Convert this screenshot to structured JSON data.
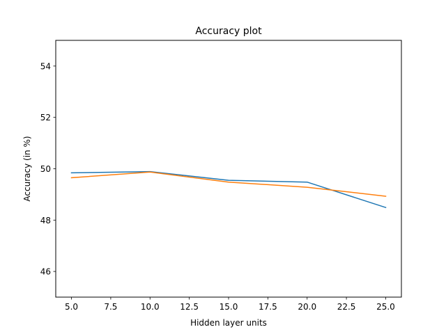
{
  "chart_data": {
    "type": "line",
    "title": "Accuracy plot",
    "xlabel": "Hidden layer units",
    "ylabel": "Accuracy (in %)",
    "xlim": [
      4.0,
      26.0
    ],
    "ylim": [
      45.0,
      55.0
    ],
    "xticks": [
      5.0,
      7.5,
      10.0,
      12.5,
      15.0,
      17.5,
      20.0,
      22.5,
      25.0
    ],
    "xtick_labels": [
      "5.0",
      "7.5",
      "10.0",
      "12.5",
      "15.0",
      "17.5",
      "20.0",
      "22.5",
      "25.0"
    ],
    "yticks": [
      46,
      48,
      50,
      52,
      54
    ],
    "ytick_labels": [
      "46",
      "48",
      "50",
      "52",
      "54"
    ],
    "grid": false,
    "legend": "none",
    "x": [
      5,
      10,
      15,
      20,
      25
    ],
    "series": [
      {
        "color": "#1f77b4",
        "values": [
          49.84,
          49.89,
          49.55,
          49.48,
          48.49
        ]
      },
      {
        "color": "#ff7f0e",
        "values": [
          49.65,
          49.87,
          49.48,
          49.28,
          48.93
        ]
      }
    ]
  }
}
